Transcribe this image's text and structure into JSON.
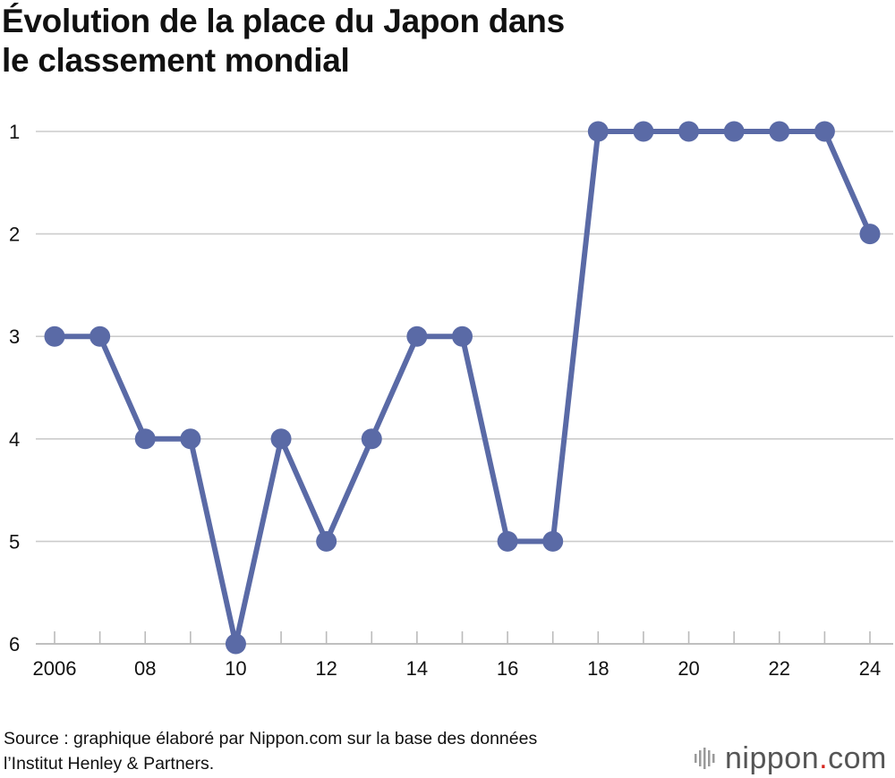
{
  "title": {
    "line1": "Évolution de la place du Japon dans",
    "line2": "le classement mondial"
  },
  "source": {
    "line1": "Source : graphique élaboré par Nippon.com sur la base des données",
    "line2": "l’Institut Henley & Partners."
  },
  "brand": {
    "name": "nippon",
    "dot": ".",
    "tld": "com"
  },
  "colors": {
    "series": "#5a6aa6",
    "grid": "#cccccc",
    "text": "#111111",
    "brand_dot": "#d6271f"
  },
  "chart_data": {
    "type": "line",
    "title": "Évolution de la place du Japon dans le classement mondial",
    "x": [
      2006,
      2007,
      2008,
      2009,
      2010,
      2011,
      2012,
      2013,
      2014,
      2015,
      2016,
      2017,
      2018,
      2019,
      2020,
      2021,
      2022,
      2023,
      2024
    ],
    "x_tick_labels": [
      "2006",
      "",
      "08",
      "",
      "10",
      "",
      "12",
      "",
      "14",
      "",
      "16",
      "",
      "18",
      "",
      "20",
      "",
      "22",
      "",
      "24"
    ],
    "y_ticks": [
      1,
      2,
      3,
      4,
      5,
      6
    ],
    "y_tick_labels": [
      "1",
      "2",
      "3",
      "4",
      "5",
      "6"
    ],
    "ylim": [
      1,
      6
    ],
    "y_inverted": true,
    "grid": true,
    "series": [
      {
        "values": [
          3,
          3,
          4,
          4,
          6,
          4,
          5,
          4,
          3,
          3,
          5,
          5,
          1,
          1,
          1,
          1,
          1,
          1,
          2
        ]
      }
    ]
  }
}
